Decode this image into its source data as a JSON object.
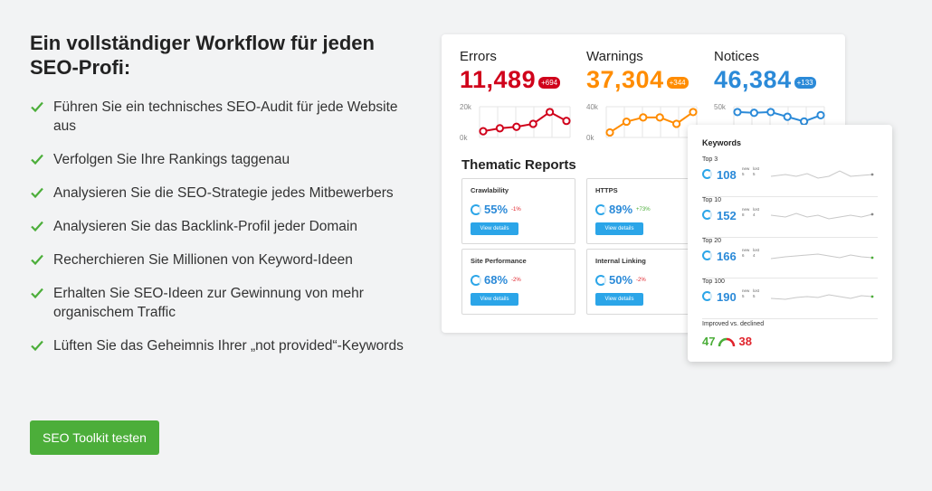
{
  "headline": "Ein vollständiger Workflow für jeden SEO-Profi:",
  "features": [
    "Führen Sie ein technisches SEO-Audit für jede Website aus",
    "Verfolgen Sie Ihre Rankings taggenau",
    "Analysieren Sie die SEO-Strategie jedes Mitbewerbers",
    "Analysieren Sie das Backlink-Profil jeder Domain",
    "Recherchieren Sie Millionen von Keyword-Ideen",
    "Erhalten Sie SEO-Ideen zur Gewinnung von mehr organischem Traffic",
    "Lüften Sie das Geheimnis Ihrer „not provided“-Keywords"
  ],
  "cta_label": "SEO Toolkit testen",
  "colors": {
    "green": "#4cae3a",
    "red": "#d0021b",
    "orange": "#ff8c00",
    "blue": "#2b8ad8"
  },
  "metrics": [
    {
      "label": "Errors",
      "value": "11,489",
      "badge": "+694",
      "color": "#d0021b",
      "y_top": "20k",
      "y_bottom": "0k",
      "trend": [
        3,
        5,
        6,
        8,
        16,
        10
      ]
    },
    {
      "label": "Warnings",
      "value": "37,304",
      "badge": "+344",
      "color": "#ff8c00",
      "y_top": "40k",
      "y_bottom": "0k",
      "trend": [
        3,
        13,
        17,
        17,
        11,
        22
      ]
    },
    {
      "label": "Notices",
      "value": "46,384",
      "badge": "+133",
      "color": "#2b8ad8",
      "y_top": "50k",
      "y_bottom": "",
      "trend": [
        30,
        29,
        30,
        24,
        18,
        26
      ]
    }
  ],
  "thematic_reports": {
    "title": "Thematic Reports",
    "view_label": "View details",
    "items": [
      {
        "name": "Crawlability",
        "pct": "55%",
        "delta": "-1%",
        "delta_color": "#e0242c"
      },
      {
        "name": "HTTPS",
        "pct": "89%",
        "delta": "+73%",
        "delta_color": "#4cae3a"
      },
      {
        "name": "Site Performance",
        "pct": "68%",
        "delta": "-2%",
        "delta_color": "#e0242c"
      },
      {
        "name": "Internal Linking",
        "pct": "50%",
        "delta": "-2%",
        "delta_color": "#e0242c"
      }
    ]
  },
  "keywords": {
    "title": "Keywords",
    "new_label": "new",
    "lost_label": "lost",
    "rows": [
      {
        "label": "Top 3",
        "value": "108",
        "new": "5",
        "lost": "5"
      },
      {
        "label": "Top 10",
        "value": "152",
        "new": "8",
        "lost": "4"
      },
      {
        "label": "Top 20",
        "value": "166",
        "new": "6",
        "lost": "4"
      },
      {
        "label": "Top 100",
        "value": "190",
        "new": "5",
        "lost": "5"
      }
    ],
    "improved_label": "Improved vs. declined",
    "improved": "47",
    "declined": "38"
  }
}
